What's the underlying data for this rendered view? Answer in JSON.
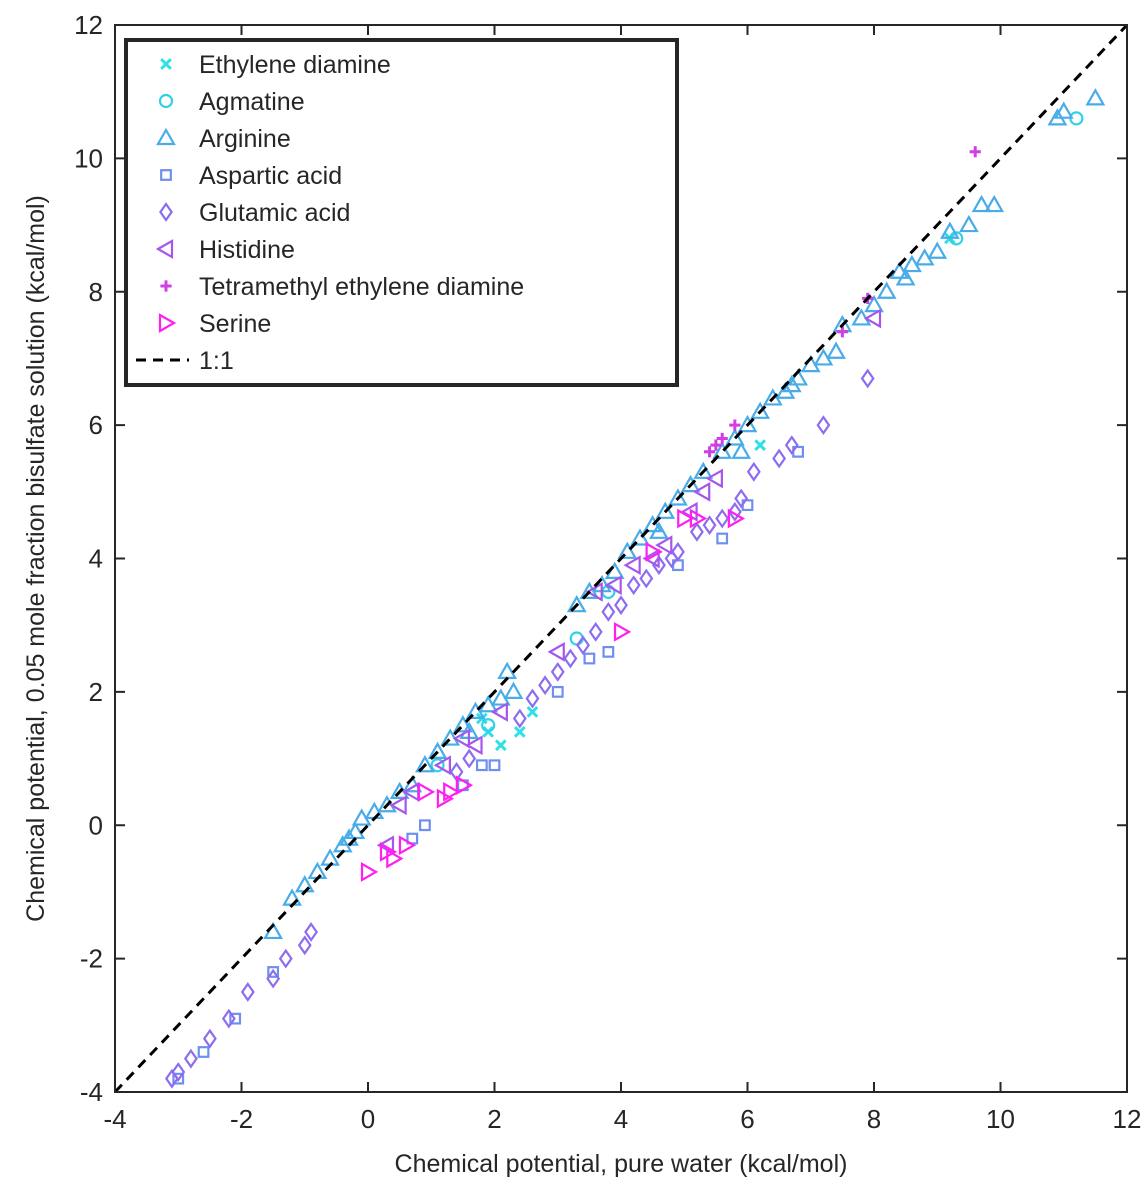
{
  "chart_data": {
    "type": "scatter",
    "xlabel": "Chemical potential, pure water (kcal/mol)",
    "ylabel": "Chemical potential, 0.05 mole fraction bisulfate solution (kcal/mol)",
    "xlim": [
      -4,
      12
    ],
    "ylim": [
      -4,
      12
    ],
    "x_ticks": [
      -4,
      -2,
      0,
      2,
      4,
      6,
      8,
      10,
      12
    ],
    "y_ticks": [
      -4,
      -2,
      0,
      2,
      4,
      6,
      8,
      10,
      12
    ],
    "grid": false,
    "legend_position": "top-left",
    "reference_line": {
      "name": "1:1",
      "from": [
        -4,
        -4
      ],
      "to": [
        12,
        12
      ],
      "style": "dashed",
      "color": "#000000"
    },
    "series": [
      {
        "name": "Ethylene diamine",
        "marker": "x",
        "color": "#2fe0e6",
        "points": [
          [
            1.9,
            1.4
          ],
          [
            2.1,
            1.2
          ],
          [
            2.4,
            1.4
          ],
          [
            2.6,
            1.7
          ],
          [
            6.2,
            5.7
          ],
          [
            9.2,
            8.8
          ],
          [
            1.8,
            1.6
          ]
        ]
      },
      {
        "name": "Agmatine",
        "marker": "circle",
        "color": "#2fd2e6",
        "points": [
          [
            11.2,
            10.6
          ],
          [
            1.1,
            0.9
          ],
          [
            3.3,
            2.8
          ],
          [
            3.8,
            3.5
          ],
          [
            1.9,
            1.5
          ],
          [
            9.3,
            8.8
          ]
        ]
      },
      {
        "name": "Arginine",
        "marker": "triangle-up",
        "color": "#48ace9",
        "points": [
          [
            11.5,
            10.9
          ],
          [
            10.9,
            10.6
          ],
          [
            11.0,
            10.7
          ],
          [
            9.9,
            9.3
          ],
          [
            9.7,
            9.3
          ],
          [
            9.5,
            9.0
          ],
          [
            9.2,
            8.9
          ],
          [
            9.0,
            8.6
          ],
          [
            8.8,
            8.5
          ],
          [
            8.6,
            8.4
          ],
          [
            8.4,
            8.3
          ],
          [
            8.2,
            8.0
          ],
          [
            8.0,
            7.8
          ],
          [
            7.8,
            7.6
          ],
          [
            7.5,
            7.5
          ],
          [
            7.2,
            7.0
          ],
          [
            7.0,
            6.9
          ],
          [
            6.8,
            6.7
          ],
          [
            6.6,
            6.5
          ],
          [
            6.4,
            6.4
          ],
          [
            6.2,
            6.2
          ],
          [
            6.0,
            6.0
          ],
          [
            5.8,
            5.8
          ],
          [
            5.6,
            5.6
          ],
          [
            5.3,
            5.3
          ],
          [
            5.1,
            5.1
          ],
          [
            4.9,
            4.9
          ],
          [
            4.7,
            4.7
          ],
          [
            4.5,
            4.5
          ],
          [
            4.3,
            4.3
          ],
          [
            4.1,
            4.1
          ],
          [
            3.9,
            3.8
          ],
          [
            3.7,
            3.6
          ],
          [
            3.5,
            3.5
          ],
          [
            3.3,
            3.3
          ],
          [
            2.2,
            2.3
          ],
          [
            2.3,
            2.0
          ],
          [
            2.1,
            1.9
          ],
          [
            1.9,
            1.8
          ],
          [
            1.7,
            1.7
          ],
          [
            1.5,
            1.5
          ],
          [
            1.3,
            1.3
          ],
          [
            1.1,
            1.1
          ],
          [
            0.9,
            0.9
          ],
          [
            0.5,
            0.5
          ],
          [
            0.3,
            0.3
          ],
          [
            0.1,
            0.2
          ],
          [
            -0.1,
            0.1
          ],
          [
            -0.2,
            -0.1
          ],
          [
            -0.4,
            -0.3
          ],
          [
            -0.6,
            -0.5
          ],
          [
            -0.8,
            -0.7
          ],
          [
            -1.0,
            -0.9
          ],
          [
            -1.2,
            -1.1
          ],
          [
            -1.5,
            -1.6
          ],
          [
            6.7,
            6.6
          ],
          [
            7.4,
            7.1
          ],
          [
            8.5,
            8.2
          ],
          [
            5.9,
            5.6
          ],
          [
            4.6,
            4.4
          ],
          [
            1.6,
            1.4
          ],
          [
            0.7,
            0.6
          ],
          [
            -0.3,
            -0.2
          ]
        ]
      },
      {
        "name": "Aspartic acid",
        "marker": "square",
        "color": "#6e8ff0",
        "points": [
          [
            6.8,
            5.6
          ],
          [
            6.0,
            4.8
          ],
          [
            5.6,
            4.3
          ],
          [
            3.8,
            2.6
          ],
          [
            3.5,
            2.5
          ],
          [
            2.0,
            0.9
          ],
          [
            1.8,
            0.9
          ],
          [
            1.5,
            0.6
          ],
          [
            0.9,
            0.0
          ],
          [
            0.7,
            -0.2
          ],
          [
            -1.5,
            -2.2
          ],
          [
            -2.1,
            -2.9
          ],
          [
            -2.6,
            -3.4
          ],
          [
            -3.0,
            -3.8
          ],
          [
            4.9,
            3.9
          ],
          [
            3.0,
            2.0
          ]
        ]
      },
      {
        "name": "Glutamic acid",
        "marker": "diamond",
        "color": "#8e6cf0",
        "points": [
          [
            7.9,
            6.7
          ],
          [
            7.2,
            6.0
          ],
          [
            6.7,
            5.7
          ],
          [
            6.5,
            5.5
          ],
          [
            6.1,
            5.3
          ],
          [
            5.9,
            4.9
          ],
          [
            5.6,
            4.6
          ],
          [
            5.4,
            4.5
          ],
          [
            5.2,
            4.4
          ],
          [
            4.9,
            4.1
          ],
          [
            4.6,
            3.9
          ],
          [
            4.4,
            3.7
          ],
          [
            4.2,
            3.6
          ],
          [
            4.0,
            3.3
          ],
          [
            3.8,
            3.2
          ],
          [
            3.6,
            2.9
          ],
          [
            3.4,
            2.7
          ],
          [
            3.2,
            2.5
          ],
          [
            3.0,
            2.3
          ],
          [
            2.8,
            2.1
          ],
          [
            2.6,
            1.9
          ],
          [
            2.4,
            1.6
          ],
          [
            1.6,
            1.0
          ],
          [
            1.4,
            0.8
          ],
          [
            -0.9,
            -1.6
          ],
          [
            -1.0,
            -1.8
          ],
          [
            -1.3,
            -2.0
          ],
          [
            -1.5,
            -2.3
          ],
          [
            -1.9,
            -2.5
          ],
          [
            -2.2,
            -2.9
          ],
          [
            -2.5,
            -3.2
          ],
          [
            -2.8,
            -3.5
          ],
          [
            -3.1,
            -3.8
          ],
          [
            -3.0,
            -3.7
          ],
          [
            5.8,
            4.7
          ],
          [
            4.8,
            4.0
          ]
        ]
      },
      {
        "name": "Histidine",
        "marker": "triangle-left",
        "color": "#a656ec",
        "points": [
          [
            8.0,
            7.6
          ],
          [
            5.5,
            5.2
          ],
          [
            5.3,
            5.0
          ],
          [
            4.7,
            4.2
          ],
          [
            4.5,
            4.0
          ],
          [
            3.9,
            3.6
          ],
          [
            3.6,
            3.5
          ],
          [
            3.0,
            2.6
          ],
          [
            2.1,
            1.7
          ],
          [
            1.5,
            1.3
          ],
          [
            1.2,
            0.9
          ],
          [
            0.7,
            0.5
          ],
          [
            0.5,
            0.3
          ],
          [
            0.3,
            -0.3
          ],
          [
            5.1,
            4.7
          ],
          [
            4.2,
            3.9
          ],
          [
            1.7,
            1.2
          ]
        ]
      },
      {
        "name": "Tetramethyl ethylene diamine",
        "marker": "plus",
        "color": "#d03ee4",
        "points": [
          [
            9.6,
            10.1
          ],
          [
            7.9,
            7.9
          ],
          [
            7.5,
            7.4
          ],
          [
            5.8,
            6.0
          ],
          [
            5.5,
            5.7
          ],
          [
            5.4,
            5.6
          ],
          [
            5.6,
            5.8
          ]
        ]
      },
      {
        "name": "Serine",
        "marker": "triangle-right",
        "color": "#ff1ff0",
        "points": [
          [
            5.8,
            4.6
          ],
          [
            5.2,
            4.6
          ],
          [
            4.5,
            4.1
          ],
          [
            4.0,
            2.9
          ],
          [
            1.5,
            0.6
          ],
          [
            1.3,
            0.5
          ],
          [
            1.2,
            0.4
          ],
          [
            0.6,
            -0.3
          ],
          [
            0.4,
            -0.5
          ],
          [
            0.3,
            -0.4
          ],
          [
            0.0,
            -0.7
          ],
          [
            0.9,
            0.5
          ],
          [
            5.0,
            4.6
          ]
        ]
      }
    ]
  }
}
